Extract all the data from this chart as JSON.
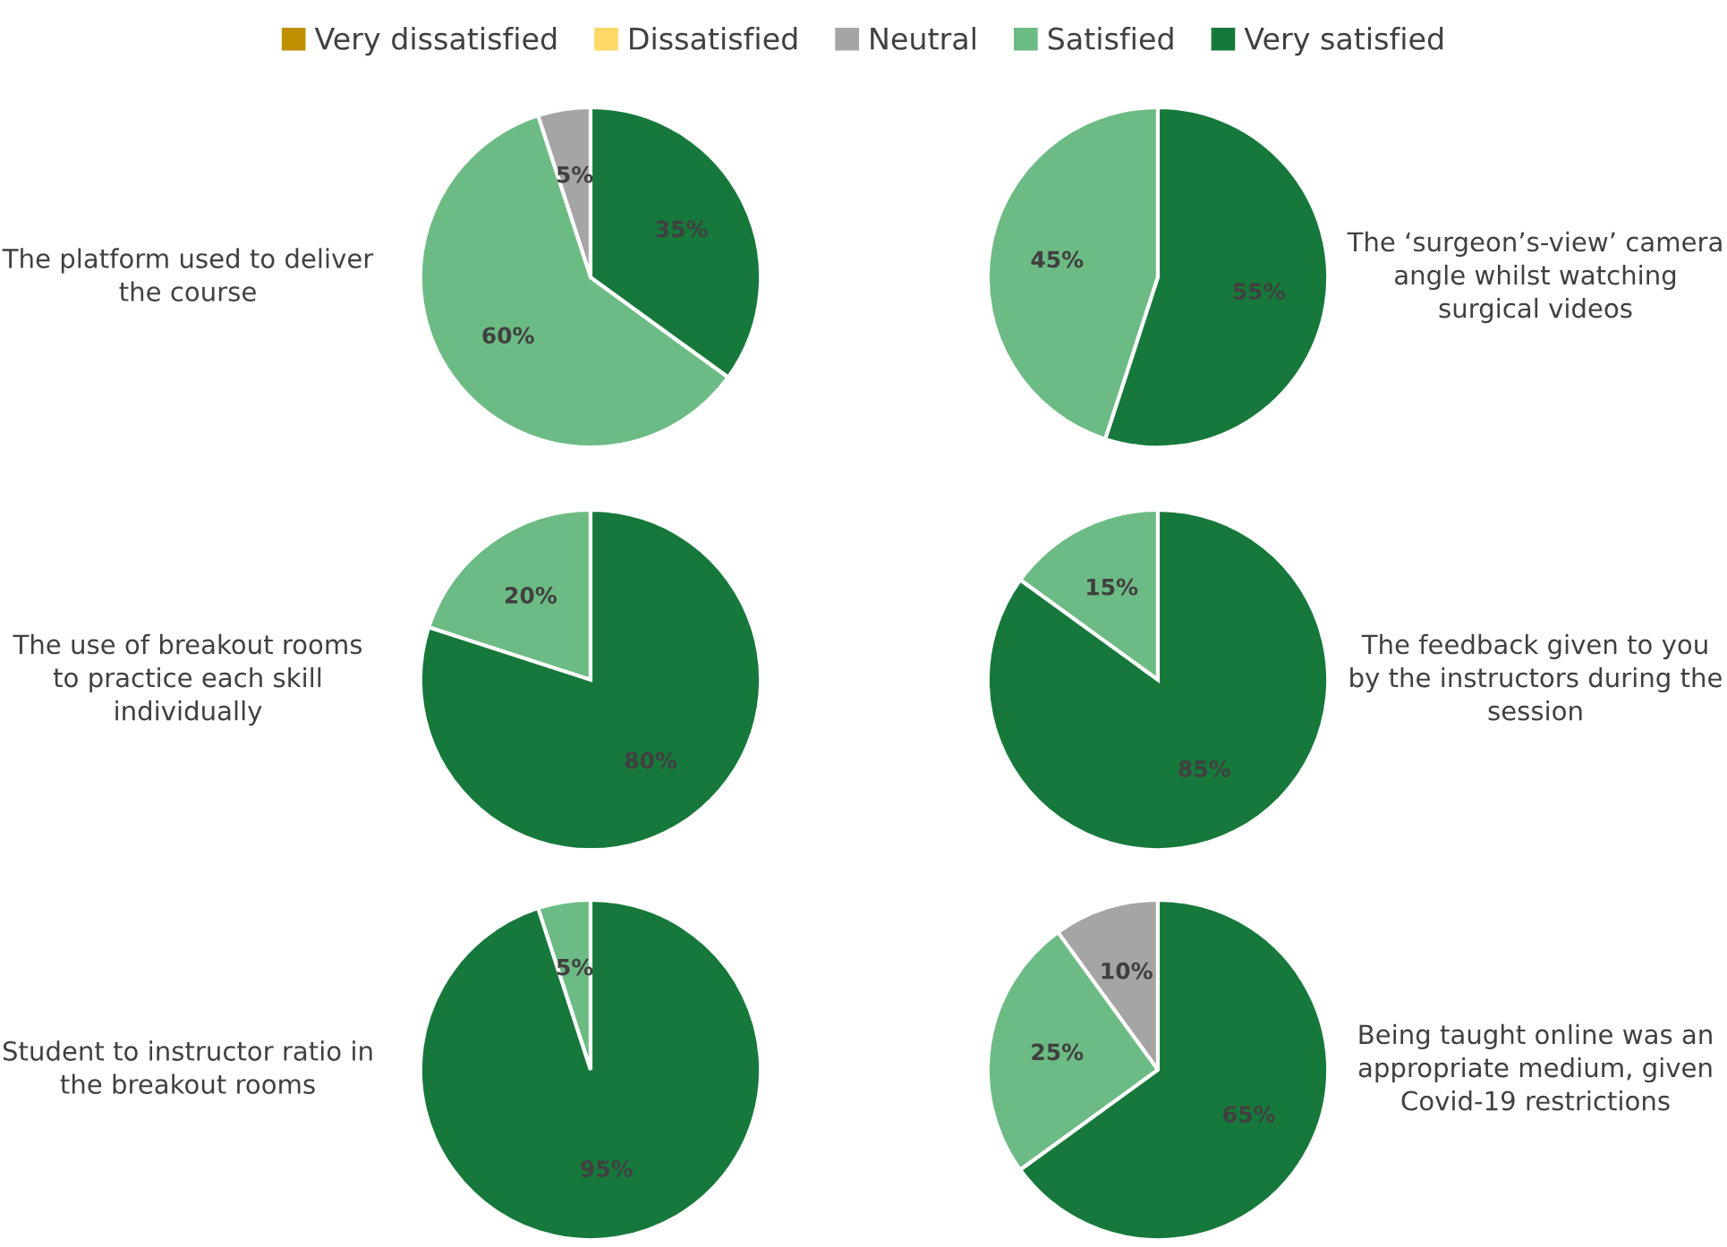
{
  "chart_data": [
    {
      "type": "pie",
      "title": "The platform used to deliver the course",
      "categories": [
        "Very dissatisfied",
        "Dissatisfied",
        "Neutral",
        "Satisfied",
        "Very satisfied"
      ],
      "values": [
        0,
        0,
        5,
        60,
        35
      ],
      "value_labels": [
        null,
        null,
        "5%",
        "60%",
        "35%"
      ],
      "colors": [
        "#bf8f00",
        "#ffd966",
        "#a5a5a5",
        "#6dbb84",
        "#17783b"
      ],
      "legend": "top"
    },
    {
      "type": "pie",
      "title": "The ‘surgeon’s-view’ camera angle whilst watching surgical videos",
      "categories": [
        null,
        null,
        null,
        null,
        null
      ],
      "values": [
        0,
        0,
        0,
        45,
        55
      ],
      "value_labels": [
        null,
        null,
        null,
        "45%",
        "55%"
      ],
      "colors": [
        "#bf8f00",
        "#ffd966",
        "#a5a5a5",
        "#6dbb84",
        "#17783b"
      ]
    },
    {
      "type": "pie",
      "title": "The use of breakout rooms to practice each skill individually",
      "categories": [
        null,
        null,
        null,
        null,
        null
      ],
      "values": [
        0,
        0,
        0,
        20,
        80
      ],
      "value_labels": [
        null,
        null,
        null,
        "20%",
        "80%"
      ],
      "colors": [
        "#bf8f00",
        "#ffd966",
        "#a5a5a5",
        "#6dbb84",
        "#17783b"
      ]
    },
    {
      "type": "pie",
      "title": "The feedback given to you by the instructors during the session",
      "categories": [
        null,
        null,
        null,
        null,
        null
      ],
      "values": [
        0,
        0,
        0,
        15,
        85
      ],
      "value_labels": [
        null,
        null,
        null,
        "15%",
        "85%"
      ],
      "colors": [
        "#bf8f00",
        "#ffd966",
        "#a5a5a5",
        "#6dbb84",
        "#17783b"
      ]
    },
    {
      "type": "pie",
      "title": "Student to instructor ratio in the breakout rooms",
      "categories": [
        null,
        null,
        null,
        null,
        null
      ],
      "values": [
        0,
        0,
        0,
        5,
        95
      ],
      "value_labels": [
        null,
        null,
        null,
        "5%",
        "95%"
      ],
      "colors": [
        "#bf8f00",
        "#ffd966",
        "#a5a5a5",
        "#6dbb84",
        "#17783b"
      ]
    },
    {
      "type": "pie",
      "title": "Being taught online was an appropriate medium, given Covid-19 restrictions",
      "categories": [
        null,
        null,
        null,
        null,
        null
      ],
      "values": [
        0,
        0,
        10,
        25,
        65
      ],
      "value_labels": [
        null,
        null,
        "10%",
        "25%",
        "65%"
      ],
      "colors": [
        "#bf8f00",
        "#ffd966",
        "#a5a5a5",
        "#6dbb84",
        "#17783b"
      ]
    }
  ]
}
